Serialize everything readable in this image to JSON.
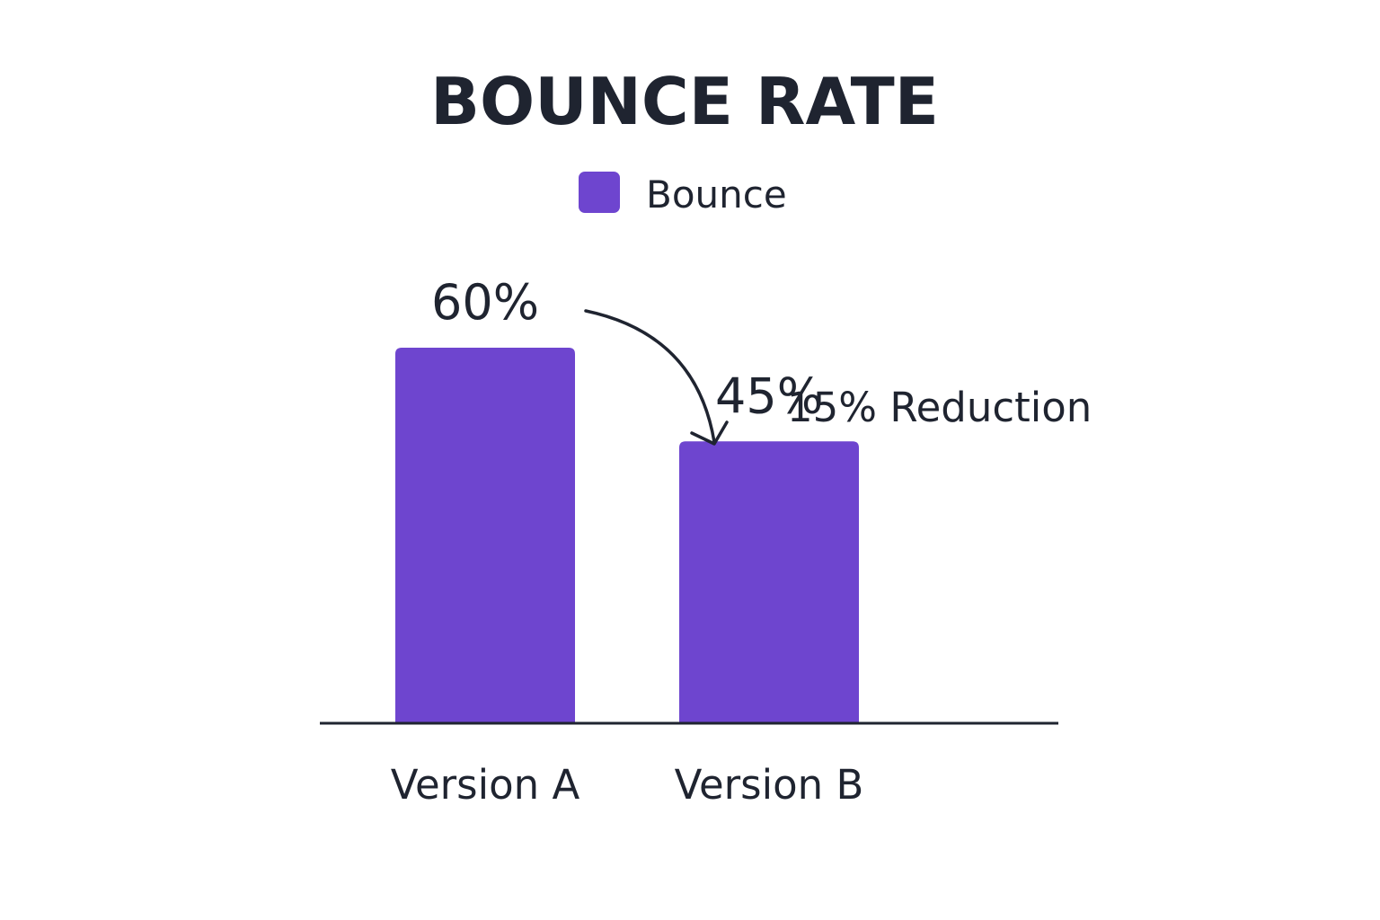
{
  "chart_data": {
    "type": "bar",
    "title": "BOUNCE RATE",
    "categories": [
      "Version A",
      "Version B"
    ],
    "series": [
      {
        "name": "Bounce",
        "values": [
          60,
          45
        ]
      }
    ],
    "data_labels": [
      "60%",
      "45%"
    ],
    "unit": "%",
    "ylim": [
      0,
      70
    ],
    "grid": false,
    "legend": "top-center",
    "annotation": "15% Reduction",
    "colors": {
      "bar": "#6e45cf",
      "text": "#1f2430",
      "axis": "#1f2430"
    }
  }
}
